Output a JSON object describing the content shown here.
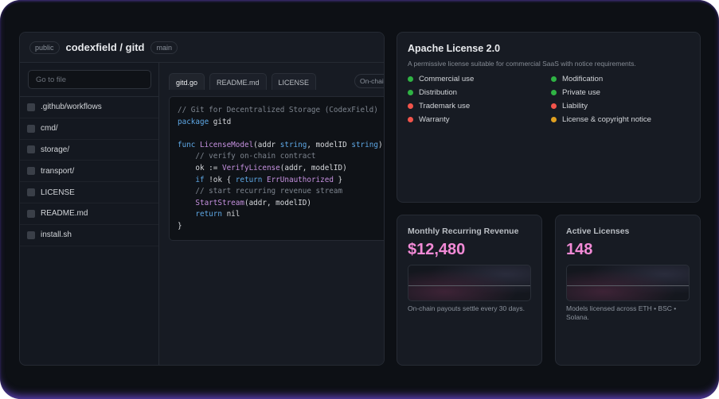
{
  "repo": {
    "visibility": "public",
    "title": "codexfield / gitd",
    "branch": "main",
    "search_placeholder": "Go to file",
    "files": [
      ".github/workflows",
      "cmd/",
      "storage/",
      "transport/",
      "LICENSE",
      "README.md",
      "install.sh"
    ],
    "tabs": [
      "gitd.go",
      "README.md",
      "LICENSE"
    ],
    "onchain_badge": "On-chain",
    "code": {
      "l1": "// Git for Decentralized Storage (CodexField)",
      "l2k": "package",
      "l2": " gitd",
      "l4k": "func",
      "l4f": "LicenseModel",
      "l4a": "(addr ",
      "l4t1": "string",
      "l4b": ", modelID ",
      "l4t2": "string",
      "l4c": ") {",
      "l5": "    // verify on-chain contract",
      "l6a": "    ok := ",
      "l6f": "VerifyLicense",
      "l6b": "(addr, modelID)",
      "l7k": "if",
      "l7a": " !ok { ",
      "l7k2": "return",
      "l7f": "ErrUnauthorized",
      "l7b": " }",
      "l8": "    // start recurring revenue stream",
      "l9f": "StartStream",
      "l9b": "(addr, modelID)",
      "l10k": "return",
      "l10": " nil",
      "l11": "}"
    }
  },
  "license": {
    "title": "Apache License 2.0",
    "description": "A permissive license suitable for commercial SaaS with notice requirements.",
    "permissions": [
      {
        "label": "Commercial use",
        "status": "permitted",
        "color": "#2fb344"
      },
      {
        "label": "Modification",
        "status": "permitted",
        "color": "#2fb344"
      },
      {
        "label": "Distribution",
        "status": "permitted",
        "color": "#2fb344"
      },
      {
        "label": "Private use",
        "status": "permitted",
        "color": "#2fb344"
      },
      {
        "label": "Trademark use",
        "status": "limited",
        "color": "#f2544b"
      },
      {
        "label": "Liability",
        "status": "limited",
        "color": "#f2544b"
      },
      {
        "label": "Warranty",
        "status": "limited",
        "color": "#f2544b"
      },
      {
        "label": "License & copyright notice",
        "status": "condition",
        "color": "#e0a020"
      }
    ]
  },
  "metrics": [
    {
      "title": "Monthly Recurring Revenue",
      "value": "$12,480",
      "note": "On-chain payouts settle every 30 days."
    },
    {
      "title": "Active Licenses",
      "value": "148",
      "note": "Models licensed across ETH • BSC • Solana."
    }
  ],
  "colors": {
    "accent": "#f28ad6",
    "frame_glow": "#5a3fb0"
  }
}
